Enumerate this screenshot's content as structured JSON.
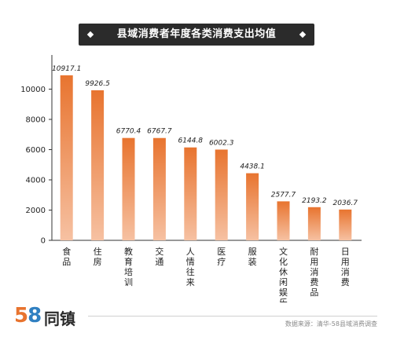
{
  "title": "县域消费者年度各类消费支出均值",
  "logo": {
    "number_5": "5",
    "number_8": "8",
    "name": "同镇"
  },
  "source": "数据来源：清华-58县域消费调查",
  "colors": {
    "bar_top": "#e8742f",
    "bar_bottom": "#f6c1a2",
    "axis": "#333333",
    "banner": "#2b2b2b"
  },
  "chart_data": {
    "type": "bar",
    "title": "县域消费者年度各类消费支出均值",
    "xlabel": "",
    "ylabel": "",
    "ylim": [
      0,
      12000
    ],
    "yticks": [
      0,
      2000,
      4000,
      6000,
      8000,
      10000
    ],
    "grid": false,
    "categories": [
      "食品",
      "住房",
      "教育培训",
      "交通",
      "人情往来",
      "医疗",
      "服装",
      "文化休闲娱乐",
      "耐用消费品",
      "日用消费"
    ],
    "values": [
      10917.1,
      9926.5,
      6770.4,
      6767.7,
      6144.8,
      6002.3,
      4438.1,
      2577.7,
      2193.2,
      2036.7
    ],
    "value_labels": [
      "10917.1",
      "9926.5",
      "6770.4",
      "6767.7",
      "6144.8",
      "6002.3",
      "4438.1",
      "2577.7",
      "2193.2",
      "2036.7"
    ]
  }
}
